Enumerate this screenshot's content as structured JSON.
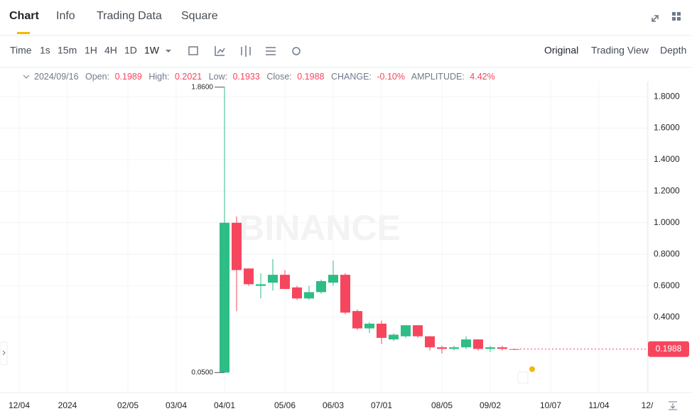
{
  "ui": {
    "tabs": [
      "Chart",
      "Info",
      "Trading Data",
      "Square"
    ],
    "intervals": [
      "Time",
      "1s",
      "15m",
      "1H",
      "4H",
      "1D",
      "1W"
    ],
    "views": [
      "Original",
      "Trading View",
      "Depth"
    ]
  },
  "info": {
    "date": "2024/09/16",
    "open": "Open:",
    "high": "High:",
    "low": "Low:",
    "close": "Close:",
    "change": "CHANGE:",
    "change_value": "-0.10%",
    "amplitude": "AMPLITUDE:",
    "amplitude_value": "4.42%"
  },
  "chart_data": {
    "type": "candlestick",
    "watermark": "BINANCE",
    "categories": [
      "12/04",
      null,
      null,
      null,
      "2024",
      null,
      null,
      null,
      null,
      "02/05",
      null,
      null,
      null,
      "03/04",
      null,
      null,
      null,
      "04/01",
      null,
      null,
      null,
      null,
      "05/06",
      null,
      null,
      null,
      "06/03",
      null,
      null,
      null,
      "07/01",
      null,
      null,
      null,
      null,
      "08/05",
      null,
      null,
      null,
      "09/02",
      null,
      null,
      null,
      null,
      "10/07",
      null,
      null,
      null,
      "11/04",
      null,
      null,
      null,
      "12/"
    ],
    "open": [
      null,
      null,
      null,
      null,
      null,
      null,
      null,
      null,
      null,
      null,
      null,
      null,
      null,
      null,
      null,
      null,
      null,
      0.05,
      1.0,
      0.71,
      0.6,
      0.62,
      0.67,
      0.59,
      0.52,
      0.56,
      0.62,
      0.67,
      0.44,
      0.33,
      0.36,
      0.26,
      0.28,
      0.35,
      0.28,
      0.21,
      0.2,
      0.21,
      0.26,
      0.2,
      0.21,
      0.1989,
      null,
      null,
      null,
      null,
      null,
      null,
      null,
      null,
      null,
      null,
      null
    ],
    "high": [
      null,
      null,
      null,
      null,
      null,
      null,
      null,
      null,
      null,
      null,
      null,
      null,
      null,
      null,
      null,
      null,
      null,
      1.86,
      1.04,
      0.71,
      0.68,
      0.77,
      0.7,
      0.6,
      0.6,
      0.64,
      0.76,
      0.68,
      0.45,
      0.37,
      0.38,
      0.3,
      0.35,
      0.35,
      0.28,
      0.22,
      0.22,
      0.28,
      0.26,
      0.22,
      0.22,
      0.2021,
      null,
      null,
      null,
      null,
      null,
      null,
      null,
      null,
      null,
      null,
      null
    ],
    "low": [
      null,
      null,
      null,
      null,
      null,
      null,
      null,
      null,
      null,
      null,
      null,
      null,
      null,
      null,
      null,
      null,
      null,
      0.05,
      0.44,
      0.6,
      0.52,
      0.57,
      0.58,
      0.51,
      0.51,
      0.55,
      0.6,
      0.42,
      0.32,
      0.3,
      0.23,
      0.25,
      0.27,
      0.27,
      0.19,
      0.17,
      0.19,
      0.2,
      0.19,
      0.18,
      0.19,
      0.1933,
      null,
      null,
      null,
      null,
      null,
      null,
      null,
      null,
      null,
      null,
      null
    ],
    "close": [
      null,
      null,
      null,
      null,
      null,
      null,
      null,
      null,
      null,
      null,
      null,
      null,
      null,
      null,
      null,
      null,
      null,
      1.0,
      0.7,
      0.61,
      0.61,
      0.67,
      0.58,
      0.52,
      0.56,
      0.63,
      0.67,
      0.43,
      0.33,
      0.36,
      0.27,
      0.29,
      0.35,
      0.28,
      0.21,
      0.2,
      0.21,
      0.26,
      0.2,
      0.21,
      0.2,
      0.1988,
      null,
      null,
      null,
      null,
      null,
      null,
      null,
      null,
      null,
      null,
      null
    ],
    "up_color": "#2ebd85",
    "down_color": "#f6465d",
    "ylim": [
      -0.077,
      1.895
    ],
    "yticks": [
      {
        "value": 0.4,
        "label": "0.4000"
      },
      {
        "value": 0.6,
        "label": "0.6000"
      },
      {
        "value": 0.8,
        "label": "0.8000"
      },
      {
        "value": 1.0,
        "label": "1.0000"
      },
      {
        "value": 1.2,
        "label": "1.2000"
      },
      {
        "value": 1.4,
        "label": "1.4000"
      },
      {
        "value": 1.6,
        "label": "1.6000"
      },
      {
        "value": 1.8,
        "label": "1.8000"
      }
    ],
    "grid": true,
    "annotations": [
      {
        "value": 1.86,
        "label": "1.8600"
      },
      {
        "value": 0.05,
        "label": "0.0500"
      }
    ]
  }
}
